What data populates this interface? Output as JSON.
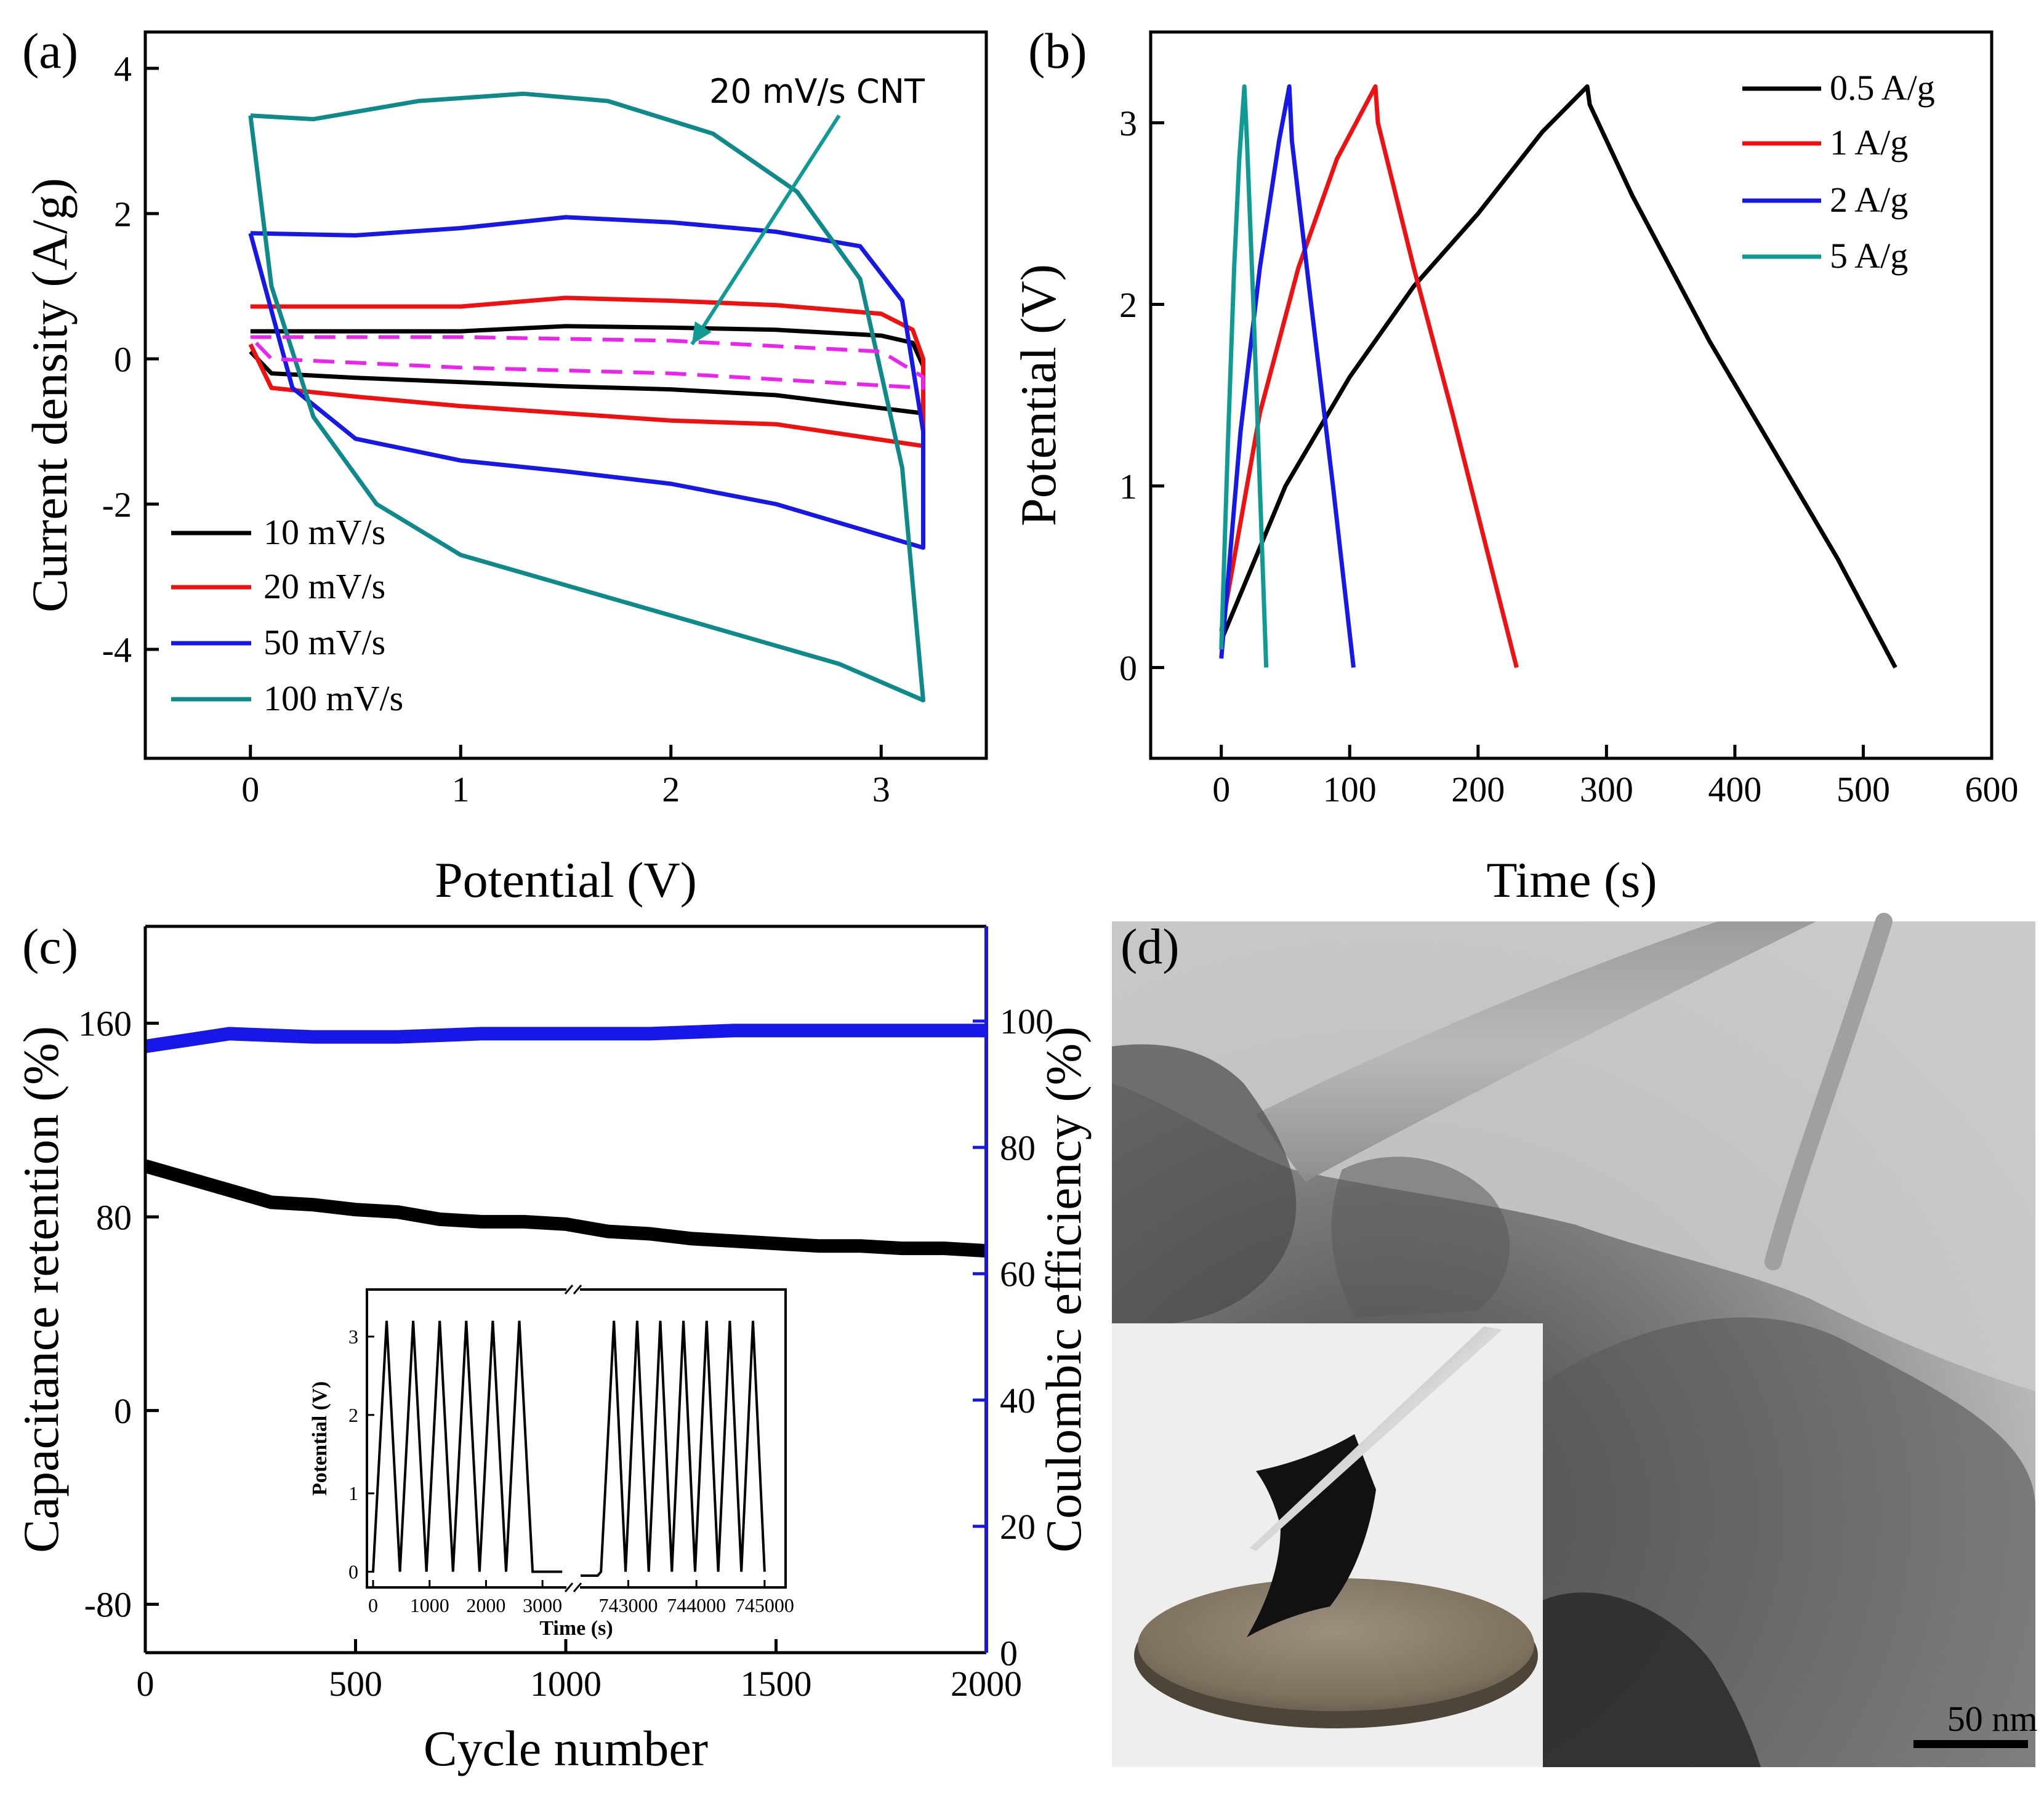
{
  "chart_data": [
    {
      "panel_label": "(a)",
      "type": "line",
      "xlabel": "Potential (V)",
      "ylabel": "Current density (A/g)",
      "xlim": [
        -0.5,
        3.5
      ],
      "ylim": [
        -5.5,
        4.5
      ],
      "xticks": [
        0,
        1,
        2,
        3
      ],
      "xtick_labels": [
        "0",
        "1",
        "2",
        "3"
      ],
      "yticks": [
        -4,
        -2,
        0,
        2,
        4
      ],
      "ytick_labels": [
        "-4",
        "-2",
        "0",
        "2",
        "4"
      ],
      "legend_position": "bottom-left",
      "annotation": {
        "text": "20 mV/s CNT",
        "x": 2.6,
        "y": 3.7,
        "arrow_to": [
          2.1,
          0.2
        ],
        "color": "#109a94"
      },
      "series": [
        {
          "name": "10 mV/s",
          "color": "#000000",
          "upper": [
            [
              0,
              0.38
            ],
            [
              0.5,
              0.38
            ],
            [
              1.0,
              0.38
            ],
            [
              1.5,
              0.45
            ],
            [
              2.0,
              0.43
            ],
            [
              2.5,
              0.4
            ],
            [
              3.0,
              0.32
            ],
            [
              3.15,
              0.22
            ],
            [
              3.2,
              -0.1
            ]
          ],
          "lower": [
            [
              3.2,
              -0.75
            ],
            [
              2.5,
              -0.5
            ],
            [
              2.0,
              -0.42
            ],
            [
              1.5,
              -0.38
            ],
            [
              1.0,
              -0.32
            ],
            [
              0.5,
              -0.26
            ],
            [
              0.1,
              -0.2
            ],
            [
              0,
              0.1
            ]
          ]
        },
        {
          "name": "20 mV/s",
          "color": "#f01010",
          "upper": [
            [
              0,
              0.72
            ],
            [
              0.5,
              0.72
            ],
            [
              1.0,
              0.72
            ],
            [
              1.5,
              0.84
            ],
            [
              2.0,
              0.8
            ],
            [
              2.5,
              0.74
            ],
            [
              3.0,
              0.62
            ],
            [
              3.15,
              0.4
            ],
            [
              3.2,
              0.0
            ]
          ],
          "lower": [
            [
              3.2,
              -1.2
            ],
            [
              2.5,
              -0.9
            ],
            [
              2.0,
              -0.85
            ],
            [
              1.5,
              -0.75
            ],
            [
              1.0,
              -0.65
            ],
            [
              0.5,
              -0.52
            ],
            [
              0.1,
              -0.4
            ],
            [
              0,
              0.2
            ]
          ]
        },
        {
          "name": "50 mV/s",
          "color": "#1717e8",
          "upper": [
            [
              0,
              1.73
            ],
            [
              0.5,
              1.7
            ],
            [
              1.0,
              1.8
            ],
            [
              1.5,
              1.95
            ],
            [
              2.0,
              1.88
            ],
            [
              2.5,
              1.75
            ],
            [
              2.9,
              1.55
            ],
            [
              3.1,
              0.8
            ],
            [
              3.2,
              -1.0
            ]
          ],
          "lower": [
            [
              3.2,
              -2.6
            ],
            [
              2.5,
              -2.0
            ],
            [
              2.0,
              -1.72
            ],
            [
              1.5,
              -1.55
            ],
            [
              1.0,
              -1.4
            ],
            [
              0.5,
              -1.1
            ],
            [
              0.2,
              -0.4
            ],
            [
              0,
              1.73
            ]
          ]
        },
        {
          "name": "100 mV/s",
          "color": "#0f8a8a",
          "upper": [
            [
              0,
              3.35
            ],
            [
              0.3,
              3.3
            ],
            [
              0.8,
              3.55
            ],
            [
              1.3,
              3.65
            ],
            [
              1.7,
              3.55
            ],
            [
              2.2,
              3.1
            ],
            [
              2.6,
              2.3
            ],
            [
              2.9,
              1.1
            ],
            [
              3.1,
              -1.5
            ],
            [
              3.2,
              -4.7
            ]
          ],
          "lower": [
            [
              3.2,
              -4.7
            ],
            [
              2.8,
              -4.2
            ],
            [
              2.2,
              -3.7
            ],
            [
              1.6,
              -3.2
            ],
            [
              1.0,
              -2.7
            ],
            [
              0.6,
              -2.0
            ],
            [
              0.3,
              -0.8
            ],
            [
              0.1,
              1.0
            ],
            [
              0,
              3.35
            ]
          ]
        },
        {
          "name": "20 mV/s CNT",
          "color": "#ee22ee",
          "dashed": true,
          "upper": [
            [
              0,
              0.3
            ],
            [
              1.0,
              0.3
            ],
            [
              2.0,
              0.25
            ],
            [
              3.0,
              0.1
            ],
            [
              3.2,
              -0.25
            ]
          ],
          "lower": [
            [
              3.2,
              -0.4
            ],
            [
              2.0,
              -0.2
            ],
            [
              1.0,
              -0.12
            ],
            [
              0.1,
              0.0
            ],
            [
              0,
              0.3
            ]
          ]
        }
      ]
    },
    {
      "panel_label": "(b)",
      "type": "line",
      "xlabel": "Time (s)",
      "ylabel": "Potential (V)",
      "xlim": [
        -55,
        600
      ],
      "ylim": [
        -0.5,
        3.5
      ],
      "xticks": [
        0,
        100,
        200,
        300,
        400,
        500,
        600
      ],
      "xtick_labels": [
        "0",
        "100",
        "200",
        "300",
        "400",
        "500",
        "600"
      ],
      "yticks": [
        0,
        1,
        2,
        3
      ],
      "ytick_labels": [
        "0",
        "1",
        "2",
        "3"
      ],
      "legend_position": "top-right",
      "series": [
        {
          "name": "0.5 A/g",
          "color": "#000000",
          "points": [
            [
              0,
              0.15
            ],
            [
              50,
              1.0
            ],
            [
              100,
              1.6
            ],
            [
              150,
              2.1
            ],
            [
              200,
              2.5
            ],
            [
              250,
              2.95
            ],
            [
              285,
              3.2
            ],
            [
              287,
              3.1
            ],
            [
              320,
              2.6
            ],
            [
              380,
              1.8
            ],
            [
              430,
              1.2
            ],
            [
              480,
              0.6
            ],
            [
              525,
              0.0
            ]
          ]
        },
        {
          "name": "1 A/g",
          "color": "#ee1111",
          "points": [
            [
              0,
              0.2
            ],
            [
              30,
              1.4
            ],
            [
              60,
              2.2
            ],
            [
              90,
              2.8
            ],
            [
              120,
              3.2
            ],
            [
              122,
              3.0
            ],
            [
              150,
              2.2
            ],
            [
              180,
              1.4
            ],
            [
              205,
              0.7
            ],
            [
              230,
              0.0
            ]
          ]
        },
        {
          "name": "2 A/g",
          "color": "#1717e8",
          "points": [
            [
              0,
              0.05
            ],
            [
              15,
              1.3
            ],
            [
              30,
              2.2
            ],
            [
              45,
              2.9
            ],
            [
              53,
              3.2
            ],
            [
              55,
              2.9
            ],
            [
              70,
              2.0
            ],
            [
              87,
              1.0
            ],
            [
              103,
              0.0
            ]
          ]
        },
        {
          "name": "5 A/g",
          "color": "#109a94",
          "points": [
            [
              0,
              0.1
            ],
            [
              5,
              1.2
            ],
            [
              10,
              2.2
            ],
            [
              14,
              2.8
            ],
            [
              18,
              3.2
            ],
            [
              20,
              2.9
            ],
            [
              25,
              2.0
            ],
            [
              30,
              1.0
            ],
            [
              35,
              0.0
            ]
          ]
        }
      ]
    },
    {
      "panel_label": "(c)",
      "type": "line",
      "xlabel": "Cycle number",
      "ylabel": "Capacitance retention (%)",
      "y2label": "Coulombic efficiency (%)",
      "xlim": [
        0,
        2000
      ],
      "ylim": [
        -100,
        200
      ],
      "y2lim": [
        0,
        115
      ],
      "xticks": [
        0,
        500,
        1000,
        1500,
        2000
      ],
      "xtick_labels": [
        "0",
        "500",
        "1000",
        "1500",
        "2000"
      ],
      "yticks": [
        -80,
        0,
        80,
        160
      ],
      "ytick_labels": [
        "-80",
        "0",
        "80",
        "160"
      ],
      "y2ticks": [
        0,
        20,
        40,
        60,
        80,
        100
      ],
      "y2tick_labels": [
        "0",
        "20",
        "40",
        "60",
        "80",
        "100"
      ],
      "series": [
        {
          "name": "Capacitance retention",
          "axis": "left",
          "color": "#000000",
          "points": [
            [
              0,
              101
            ],
            [
              100,
              96
            ],
            [
              200,
              91
            ],
            [
              300,
              86
            ],
            [
              400,
              85
            ],
            [
              500,
              83
            ],
            [
              600,
              82
            ],
            [
              700,
              79
            ],
            [
              800,
              78
            ],
            [
              900,
              78
            ],
            [
              1000,
              77
            ],
            [
              1100,
              74
            ],
            [
              1200,
              73
            ],
            [
              1300,
              71
            ],
            [
              1400,
              70
            ],
            [
              1500,
              69
            ],
            [
              1600,
              68
            ],
            [
              1700,
              68
            ],
            [
              1800,
              67
            ],
            [
              1900,
              67
            ],
            [
              2000,
              66
            ]
          ]
        },
        {
          "name": "Coulombic efficiency",
          "axis": "right",
          "color": "#1717e8",
          "points": [
            [
              0,
              96
            ],
            [
              100,
              97
            ],
            [
              200,
              98
            ],
            [
              400,
              97.5
            ],
            [
              600,
              97.5
            ],
            [
              800,
              98
            ],
            [
              1000,
              98
            ],
            [
              1200,
              98
            ],
            [
              1400,
              98.5
            ],
            [
              1600,
              98.5
            ],
            [
              1800,
              98.5
            ],
            [
              2000,
              98.5
            ]
          ]
        }
      ],
      "inset": {
        "type": "line",
        "xlabel": "Time (s)",
        "ylabel": "Potential (V)",
        "xtick_labels": [
          "0",
          "1000",
          "2000",
          "3000",
          "743000",
          "744000",
          "745000"
        ],
        "ytick_labels": [
          "0",
          "1",
          "2",
          "3"
        ],
        "ylim": [
          -0.2,
          3.6
        ],
        "segments": [
          {
            "x_start": 0,
            "x_end": 3500,
            "peaks": [
              240,
              710,
              1180,
              1650,
              2120,
              2590
            ],
            "end_peak": 2820,
            "tail": [
              [
                2820,
                0
              ],
              [
                3350,
                0
              ]
            ]
          },
          {
            "x_start": 742300,
            "x_end": 745200,
            "lead": [
              [
                742300,
                -0.05
              ],
              [
                742550,
                -0.05
              ]
            ],
            "peaks": [
              742790,
              743130,
              743470,
              743810,
              744150,
              744490,
              744830
            ],
            "end_peak": 745000
          }
        ],
        "cycle_half_width": 200,
        "peak_value": 3.2
      }
    }
  ],
  "panel_d": {
    "panel_label": "(d)",
    "scale_bar": "50 nm"
  }
}
